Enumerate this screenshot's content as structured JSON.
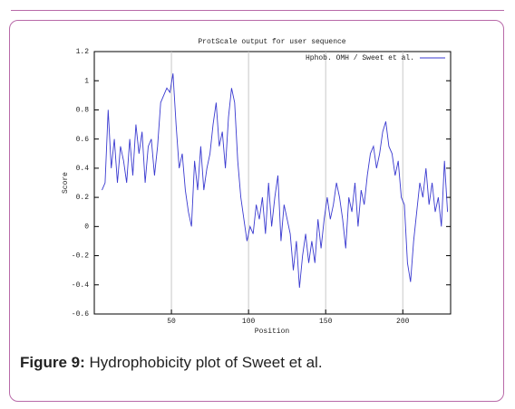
{
  "chart_data": {
    "type": "line",
    "title": "ProtScale output for user sequence",
    "xlabel": "Position",
    "ylabel": "Score",
    "caption_label": "Figure 9:",
    "caption_text": "Hydrophobicity plot of Sweet et al.",
    "x": [
      5,
      7,
      9,
      11,
      13,
      15,
      17,
      19,
      21,
      23,
      25,
      27,
      29,
      31,
      33,
      35,
      37,
      39,
      41,
      43,
      45,
      47,
      49,
      51,
      53,
      55,
      57,
      59,
      61,
      63,
      65,
      67,
      69,
      71,
      73,
      75,
      77,
      79,
      81,
      83,
      85,
      87,
      89,
      91,
      93,
      95,
      97,
      99,
      101,
      103,
      105,
      107,
      109,
      111,
      113,
      115,
      117,
      119,
      121,
      123,
      125,
      127,
      129,
      131,
      133,
      135,
      137,
      139,
      141,
      143,
      145,
      147,
      149,
      151,
      153,
      155,
      157,
      159,
      161,
      163,
      165,
      167,
      169,
      171,
      173,
      175,
      177,
      179,
      181,
      183,
      185,
      187,
      189,
      191,
      193,
      195,
      197,
      199,
      201,
      203,
      205,
      207,
      209,
      211,
      213,
      215,
      217,
      219,
      221,
      223,
      225,
      227,
      229
    ],
    "series": [
      {
        "name": "Hphob. OMH / Sweet et al.",
        "color": "#3a3ad0",
        "values": [
          0.25,
          0.3,
          0.8,
          0.4,
          0.6,
          0.3,
          0.55,
          0.45,
          0.3,
          0.6,
          0.35,
          0.7,
          0.5,
          0.65,
          0.3,
          0.55,
          0.6,
          0.35,
          0.55,
          0.85,
          0.9,
          0.95,
          0.92,
          1.05,
          0.7,
          0.4,
          0.5,
          0.25,
          0.1,
          0.0,
          0.45,
          0.25,
          0.55,
          0.25,
          0.4,
          0.5,
          0.7,
          0.85,
          0.55,
          0.65,
          0.4,
          0.75,
          0.95,
          0.85,
          0.45,
          0.2,
          0.05,
          -0.1,
          0.0,
          -0.05,
          0.15,
          0.05,
          0.2,
          -0.05,
          0.3,
          0.0,
          0.2,
          0.35,
          -0.1,
          0.15,
          0.05,
          -0.05,
          -0.3,
          -0.1,
          -0.42,
          -0.2,
          -0.05,
          -0.25,
          -0.1,
          -0.25,
          0.05,
          -0.15,
          0.05,
          0.2,
          0.05,
          0.15,
          0.3,
          0.2,
          0.05,
          -0.15,
          0.2,
          0.1,
          0.3,
          0.0,
          0.25,
          0.15,
          0.35,
          0.5,
          0.55,
          0.4,
          0.5,
          0.65,
          0.72,
          0.55,
          0.5,
          0.35,
          0.45,
          0.2,
          0.15,
          -0.25,
          -0.38,
          -0.1,
          0.1,
          0.3,
          0.2,
          0.4,
          0.15,
          0.3,
          0.1,
          0.2,
          0.0,
          0.45,
          0.1
        ]
      }
    ],
    "xlim": [
      0,
      231
    ],
    "xticks": [
      50,
      100,
      150,
      200
    ],
    "ylim": [
      -0.6,
      1.2
    ],
    "yticks": [
      -0.6,
      -0.4,
      -0.2,
      0,
      0.2,
      0.4,
      0.6,
      0.8,
      1,
      1.2
    ],
    "grid": "x",
    "legend": "top-right"
  }
}
